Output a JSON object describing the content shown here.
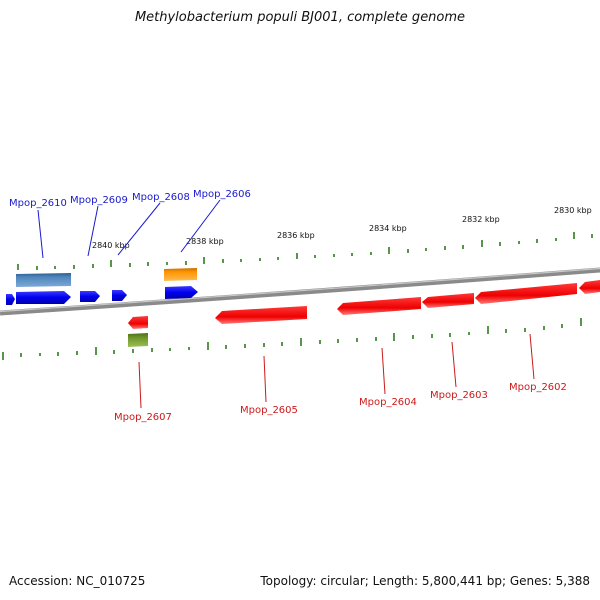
{
  "title": "Methylobacterium populi BJ001, complete genome",
  "footer": {
    "accession": "Accession: NC_010725",
    "summary": "Topology: circular; Length: 5,800,441 bp; Genes: 5,388"
  },
  "colors": {
    "forward_label": "#1a1acc",
    "reverse_label": "#cc1a1a",
    "tick": "#2e7d1e",
    "backbone": "#8a8a8a"
  },
  "kbp_labels": [
    "2840 kbp",
    "2838 kbp",
    "2836 kbp",
    "2834 kbp",
    "2832 kbp",
    "2830 kbp"
  ],
  "forward_labels": [
    "Mpop_2610",
    "Mpop_2609",
    "Mpop_2608",
    "Mpop_2606"
  ],
  "reverse_labels": [
    "Mpop_2607",
    "Mpop_2605",
    "Mpop_2604",
    "Mpop_2603",
    "Mpop_2602"
  ]
}
